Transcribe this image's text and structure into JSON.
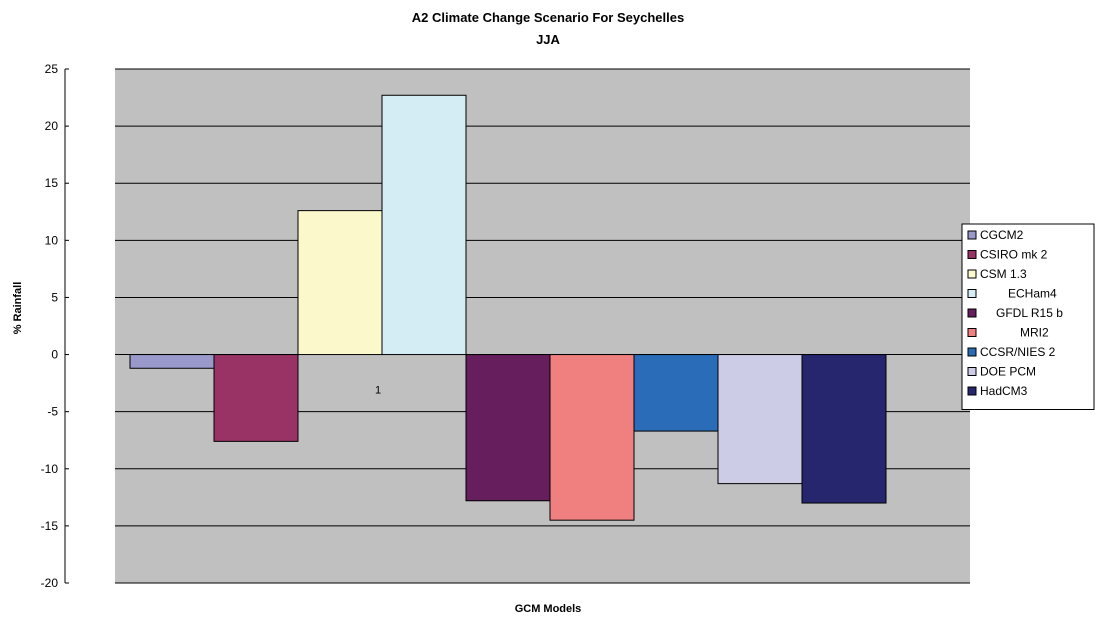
{
  "chart_data": {
    "type": "bar",
    "title": "A2 Climate Change Scenario For Seychelles",
    "subtitle": "JJA",
    "xlabel": "GCM Models",
    "ylabel": "% Rainfall",
    "categories": [
      "1"
    ],
    "ylim": [
      -20,
      25
    ],
    "yticks": [
      25,
      20,
      15,
      10,
      5,
      0,
      -5,
      -10,
      -15,
      -20
    ],
    "grid": true,
    "legend_position": "right",
    "plot_background": "#c0c0c0",
    "series": [
      {
        "name": "CGCM2",
        "values": [
          -1.2
        ],
        "color": "#9999cc"
      },
      {
        "name": "CSIRO mk 2",
        "values": [
          -7.6
        ],
        "color": "#993366"
      },
      {
        "name": "CSM 1.3",
        "values": [
          12.6
        ],
        "color": "#fbf8cc"
      },
      {
        "name": "ECHam4",
        "values": [
          22.7
        ],
        "color": "#d4ecf3"
      },
      {
        "name": "GFDL R15 b",
        "values": [
          -12.8
        ],
        "color": "#661e5c"
      },
      {
        "name": "MRI2",
        "values": [
          -14.5
        ],
        "color": "#f08080"
      },
      {
        "name": "CCSR/NIES 2",
        "values": [
          -6.7
        ],
        "color": "#2b6cb8"
      },
      {
        "name": "DOE PCM",
        "values": [
          -11.3
        ],
        "color": "#cccce6"
      },
      {
        "name": "HadCM3",
        "values": [
          -13.0
        ],
        "color": "#25266e"
      }
    ]
  }
}
